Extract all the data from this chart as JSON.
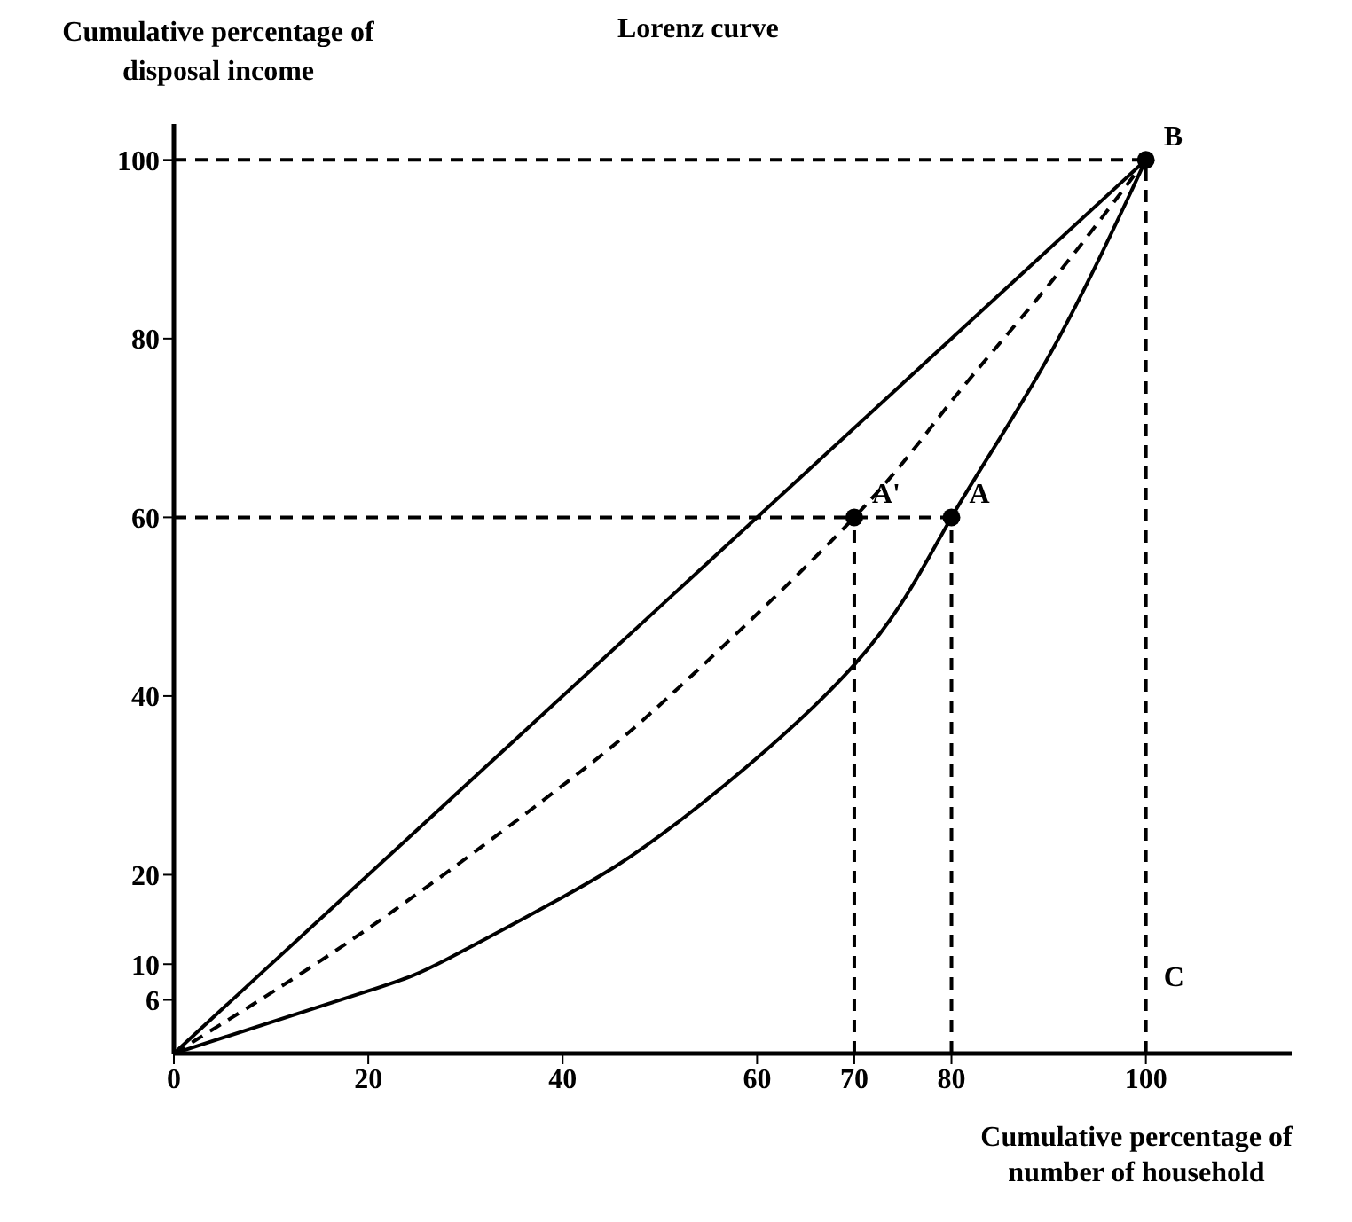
{
  "chart_data": {
    "type": "line",
    "title": "Lorenz curve",
    "xlabel": "Cumulative percentage of number of household",
    "ylabel": "Cumulative percentage of disposal income",
    "xlim": [
      0,
      115
    ],
    "xticks": [
      0,
      20,
      40,
      60,
      70,
      80,
      100
    ],
    "ylim": [
      0,
      104
    ],
    "yticks": [
      6,
      10,
      20,
      40,
      60,
      80,
      100
    ],
    "grid": false,
    "legend": false,
    "series": [
      {
        "color": "#000000",
        "line_style": "solid",
        "x": [
          0,
          100
        ],
        "values": [
          0,
          100
        ]
      },
      {
        "color": "#000000",
        "line_style": "dashed",
        "x": [
          0,
          20,
          40,
          52,
          70,
          80,
          90,
          100
        ],
        "values": [
          0,
          14,
          30,
          41,
          60,
          73,
          86,
          100
        ]
      },
      {
        "color": "#000000",
        "line_style": "solid",
        "x": [
          0,
          20,
          28,
          40,
          52,
          70,
          80,
          90,
          100
        ],
        "values": [
          0,
          7,
          10.5,
          17.5,
          26,
          43.5,
          60,
          78,
          100
        ]
      },
      {
        "color": "#000000",
        "line_style": "dashed",
        "x": [
          0,
          100
        ],
        "values": [
          100,
          100
        ]
      },
      {
        "color": "#000000",
        "line_style": "dashed",
        "x": [
          0,
          80
        ],
        "values": [
          60,
          60
        ]
      },
      {
        "color": "#000000",
        "line_style": "dashed",
        "x": [
          70,
          70
        ],
        "values": [
          0,
          60
        ]
      },
      {
        "color": "#000000",
        "line_style": "dashed",
        "x": [
          80,
          80
        ],
        "values": [
          0,
          60
        ]
      },
      {
        "color": "#000000",
        "line_style": "dashed",
        "x": [
          100,
          100
        ],
        "values": [
          0,
          100
        ]
      },
      {
        "type": "scatter",
        "color": "#000000",
        "marker": "circle",
        "x": [
          70,
          80,
          100
        ],
        "values": [
          60,
          60,
          100
        ]
      }
    ],
    "annotations": [
      {
        "text": "A'",
        "x": 70,
        "y": 60
      },
      {
        "text": "A",
        "x": 80,
        "y": 60
      },
      {
        "text": "B",
        "x": 100,
        "y": 100
      },
      {
        "text": "C",
        "x": 100,
        "y": 6
      }
    ]
  }
}
